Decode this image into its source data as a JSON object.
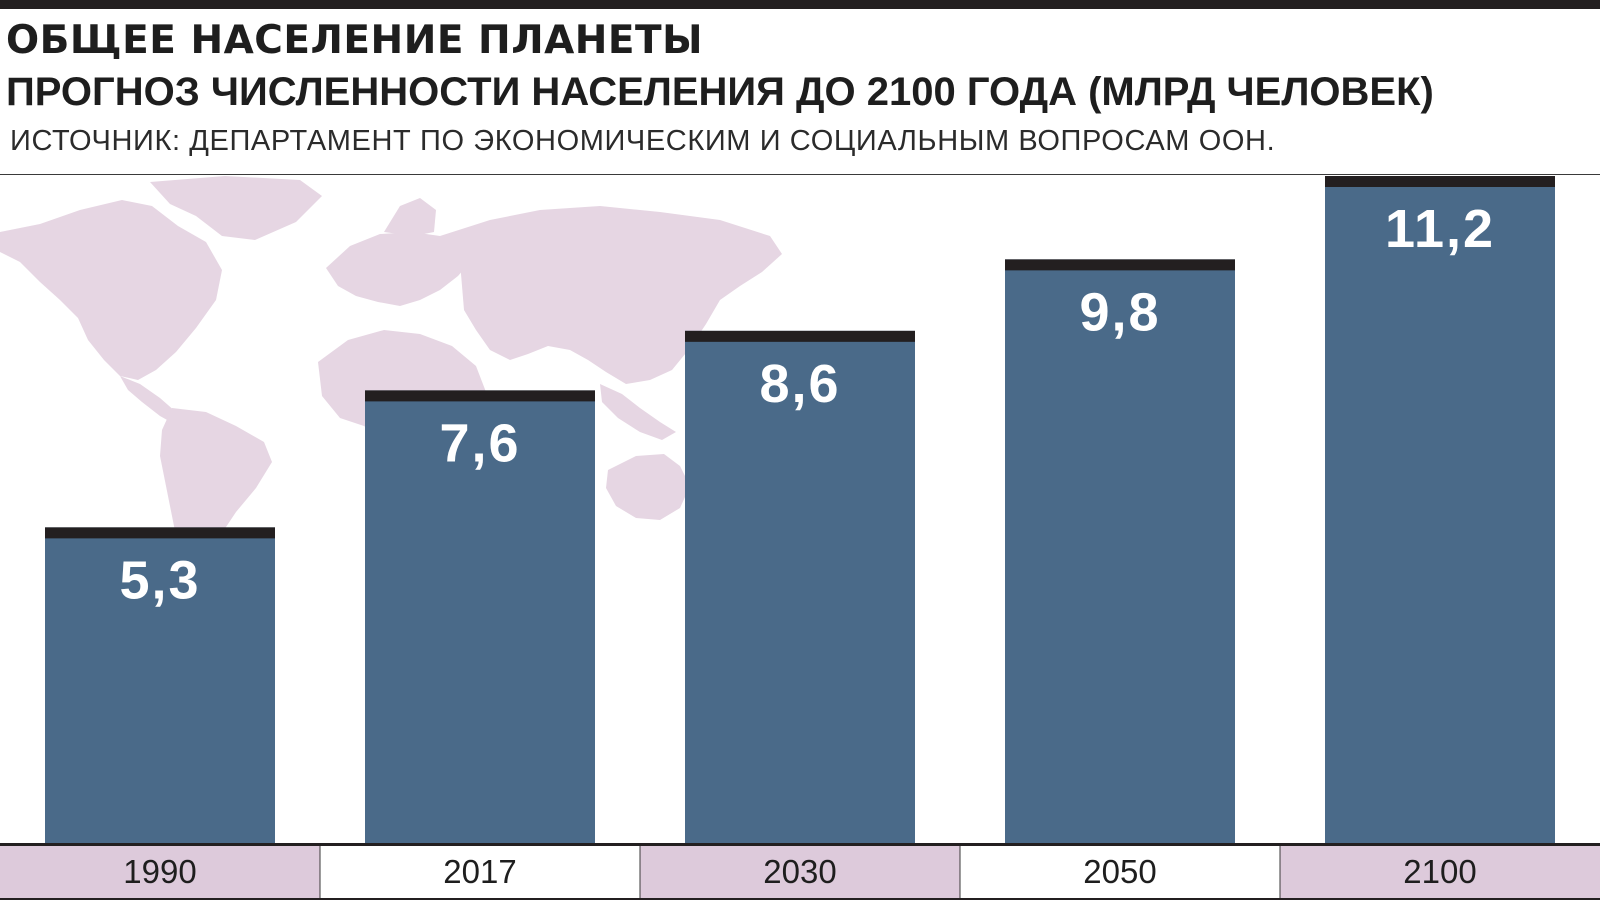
{
  "header": {
    "title": "ОБЩЕЕ НАСЕЛЕНИЕ ПЛАНЕТЫ",
    "subtitle": "ПРОГНОЗ ЧИСЛЕННОСТИ НАСЕЛЕНИЯ ДО 2100 ГОДА (МЛРД ЧЕЛОВЕК)",
    "source": "ИСТОЧНИК: ДЕПАРТАМЕНТ ПО ЭКОНОМИЧЕСКИМ И СОЦИАЛЬНЫМ ВОПРОСАМ ООН."
  },
  "colors": {
    "bar": "#4a6a89",
    "bar_cap": "#231f20",
    "map": "#e6d6e3",
    "axis_band_alt": "#ddcadb",
    "axis_band": "#ffffff"
  },
  "background_decoration": "world-map",
  "chart_data": {
    "type": "bar",
    "title": "ОБЩЕЕ НАСЕЛЕНИЕ ПЛАНЕТЫ",
    "subtitle": "ПРОГНОЗ ЧИСЛЕННОСТИ НАСЕЛЕНИЯ ДО 2100 ГОДА (МЛРД ЧЕЛОВЕК)",
    "categories": [
      "1990",
      "2017",
      "2030",
      "2050",
      "2100"
    ],
    "values": [
      5.3,
      7.6,
      8.6,
      9.8,
      11.2
    ],
    "value_labels": [
      "5,3",
      "7,6",
      "8,6",
      "9,8",
      "11,2"
    ],
    "xlabel": "",
    "ylabel": "",
    "ylim": [
      0,
      11.2
    ],
    "grid": false,
    "legend": "none"
  }
}
